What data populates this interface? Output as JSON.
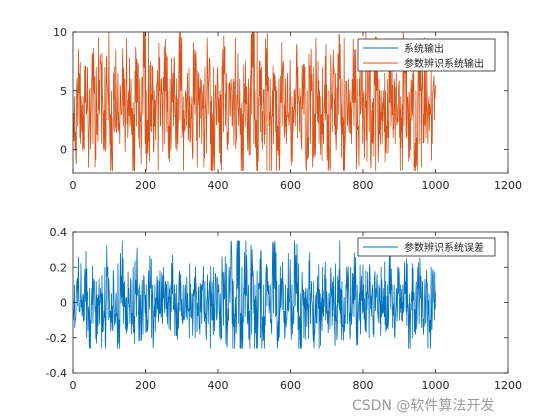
{
  "colors": {
    "system_output": "#d95319",
    "error": "#0072bd",
    "axis": "#262626",
    "background": "#ffffff"
  },
  "watermark": "CSDN @软件算法开发",
  "chart_data": [
    {
      "type": "line",
      "title": "",
      "xlabel": "",
      "ylabel": "",
      "xlim": [
        0,
        1200
      ],
      "ylim": [
        -2,
        10
      ],
      "xticks": [
        0,
        200,
        400,
        600,
        800,
        1000,
        1200
      ],
      "yticks": [
        0,
        5,
        10
      ],
      "legend_position": "top-right",
      "legend": [
        "系统输出",
        "参数辨识系统输出"
      ],
      "series": [
        {
          "name": "系统输出",
          "color": "#0072bd",
          "note_hidden": true,
          "x": [],
          "y": []
        },
        {
          "name": "参数辨识系统输出",
          "color": "#d95319",
          "x_range": [
            1,
            1000
          ],
          "n_points": 1000,
          "y_summary": {
            "mean": 3.2,
            "min": -1.8,
            "max": 10
          },
          "y_samples": [
            1,
            6,
            2,
            5.5,
            3,
            6.5,
            1.5,
            5,
            2.5,
            7,
            0,
            4,
            1.5,
            6,
            3,
            5,
            0.5,
            5.5,
            2,
            8.5,
            -1.5,
            4.5,
            2,
            6,
            3,
            7.5,
            1,
            5,
            2.5,
            9.5,
            0.5,
            4,
            2,
            7,
            3.5,
            5,
            1,
            6.5,
            -1.8,
            4,
            2,
            7,
            1.5,
            5,
            3,
            6,
            0.5,
            4.5,
            2,
            10,
            1,
            5.5,
            3,
            7.5,
            0,
            4,
            -1.8,
            6,
            2.5,
            5,
            1,
            6.5,
            3,
            5,
            0.5,
            7,
            2,
            4.5,
            1.5,
            6,
            -1,
            5,
            2.5,
            7,
            1,
            4,
            3,
            6.5,
            0.5,
            5,
            2,
            6,
            1.5,
            9.5,
            2,
            5,
            0.5,
            6,
            3,
            4.5,
            1,
            7.5,
            2,
            5.5,
            -1.5,
            6,
            3,
            4,
            1.5,
            5
          ]
        }
      ]
    },
    {
      "type": "line",
      "title": "",
      "xlabel": "",
      "ylabel": "",
      "xlim": [
        0,
        1200
      ],
      "ylim": [
        -0.4,
        0.4
      ],
      "xticks": [
        0,
        200,
        400,
        600,
        800,
        1000,
        1200
      ],
      "yticks": [
        -0.4,
        -0.2,
        0,
        0.2,
        0.4
      ],
      "legend_position": "top-right",
      "legend": [
        "参数辨识系统误差"
      ],
      "series": [
        {
          "name": "参数辨识系统误差",
          "color": "#0072bd",
          "x_range": [
            1,
            1000
          ],
          "n_points": 1000,
          "y_summary": {
            "mean": 0,
            "min": -0.26,
            "max": 0.35
          },
          "y_samples": [
            -0.1,
            0.1,
            -0.05,
            0.15,
            -0.12,
            0.05,
            -0.08,
            0.1,
            -0.15,
            0.2,
            -0.1,
            0.05,
            -0.2,
            0.12,
            -0.05,
            0.08,
            -0.1,
            0.15,
            -0.08,
            0.02,
            -0.05,
            0.1,
            -0.12,
            0.05,
            0.0,
            0.08,
            -0.05,
            0.12,
            -0.1,
            0.03,
            -0.08,
            0.06,
            -0.04,
            0.1,
            -0.06,
            0.05,
            -0.1,
            0.08,
            -0.02,
            0.04,
            -0.06,
            0.12,
            -0.1,
            0.2,
            -0.18,
            0.35,
            -0.26,
            0.22,
            -0.15,
            0.18,
            -0.12,
            0.15,
            -0.2,
            0.1,
            -0.08,
            0.2,
            -0.15,
            0.08,
            -0.05,
            0.12,
            -0.1,
            0.22,
            -0.18,
            0.1,
            -0.06,
            0.15,
            -0.12,
            0.05,
            -0.08,
            0.1,
            -0.04,
            0.08,
            -0.1,
            0.06,
            -0.05,
            0.1,
            -0.08,
            0.15,
            -0.12,
            0.05,
            -0.06,
            0.1,
            -0.1,
            0.04,
            -0.02,
            0.08,
            -0.06,
            0.12,
            -0.1,
            0.05,
            -0.05,
            0.08,
            -0.12,
            0.06,
            -0.04,
            0.1,
            -0.08,
            0.05,
            -0.13,
            0.12
          ]
        }
      ]
    }
  ]
}
